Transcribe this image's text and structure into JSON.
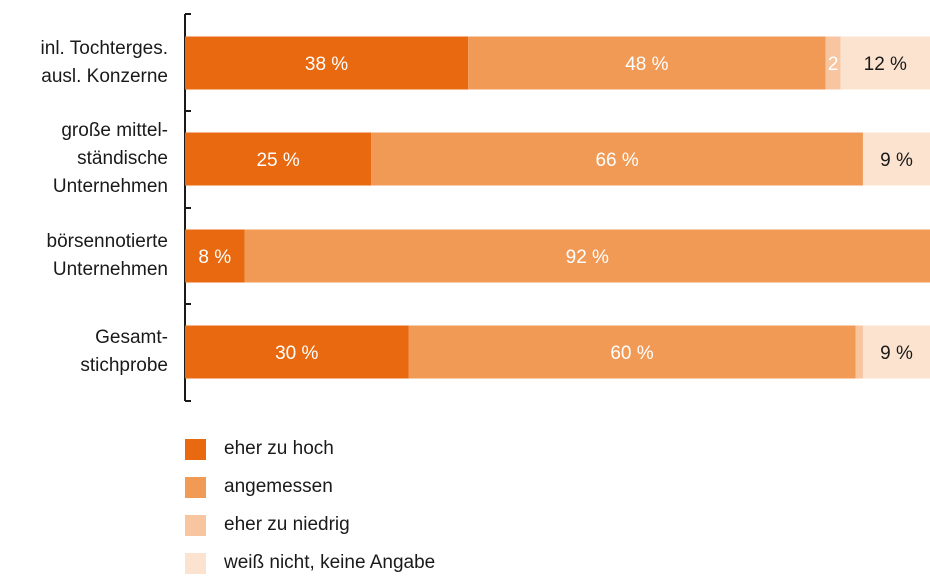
{
  "chart_data": {
    "type": "bar",
    "orientation": "horizontal",
    "stacked": true,
    "categories": [
      [
        "inl. Tochterges.",
        "ausl. Konzerne"
      ],
      [
        "große mittel-",
        "ständische",
        "Unternehmen"
      ],
      [
        "börsennotierte",
        "Unternehmen"
      ],
      [
        "Gesamt-",
        "stichprobe"
      ]
    ],
    "series": [
      {
        "name": "eher zu hoch",
        "values": [
          38,
          25,
          8,
          30
        ],
        "labels": [
          "38 %",
          "25 %",
          "8 %",
          "30 %"
        ],
        "color": "#e8690f"
      },
      {
        "name": "angemessen",
        "values": [
          48,
          66,
          92,
          60
        ],
        "labels": [
          "48 %",
          "66 %",
          "92 %",
          "60 %"
        ],
        "color": "#f19a56"
      },
      {
        "name": "eher zu niedrig",
        "values": [
          2,
          0,
          0,
          1
        ],
        "labels": [
          "2",
          "",
          "",
          ""
        ],
        "color": "#f7c5a0"
      },
      {
        "name": "weiß nicht, keine Angabe",
        "values": [
          12,
          9,
          0,
          9
        ],
        "labels": [
          "12 %",
          "9 %",
          "",
          "9 %"
        ],
        "color": "#fce3d0"
      }
    ],
    "xlim": [
      0,
      100
    ],
    "legend_position": "bottom-left",
    "grid": false
  }
}
